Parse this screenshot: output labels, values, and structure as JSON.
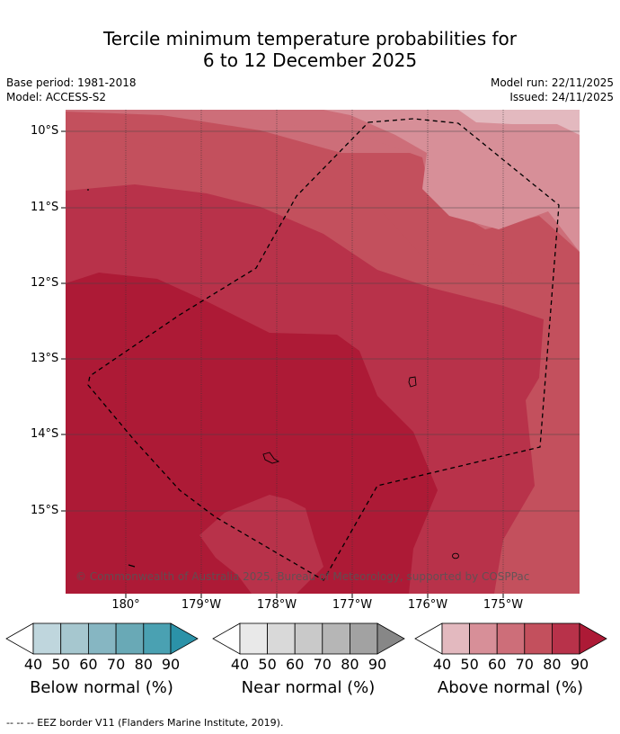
{
  "header": {
    "title_line1": "Tercile minimum temperature probabilities for",
    "title_line2": "6 to 12 December 2025",
    "base_period": "Base period: 1981-2018",
    "model": "Model: ACCESS-S2",
    "model_run": "Model run: 22/11/2025",
    "issued": "Issued: 24/11/2025"
  },
  "map": {
    "lat_labels": [
      "10°S",
      "11°S",
      "12°S",
      "13°S",
      "14°S",
      "15°S"
    ],
    "lon_labels": [
      "180°",
      "179°W",
      "178°W",
      "177°W",
      "176°W",
      "175°W"
    ],
    "copyright": "© Commonwealth of Australia 2025, Bureau of Meteorology, supported by COSPPac",
    "boundary": "EEZ border"
  },
  "legend": {
    "ticks": [
      "40",
      "50",
      "60",
      "70",
      "80",
      "90"
    ],
    "below": {
      "title": "Below normal (%)",
      "colors": [
        "#bfd6dd",
        "#a6c7cf",
        "#86b6c2",
        "#69a9b6",
        "#4aa1b2",
        "#2b92a8"
      ]
    },
    "near": {
      "title": "Near normal (%)",
      "colors": [
        "#e9e9e9",
        "#d9d9d9",
        "#c9c9c9",
        "#b6b6b6",
        "#a2a2a2",
        "#878787"
      ]
    },
    "above": {
      "title": "Above normal (%)",
      "colors": [
        "#e3b9bf",
        "#d78f98",
        "#cd6e79",
        "#c3505d",
        "#b8324a",
        "#ad1a36"
      ]
    }
  },
  "footnote": "--  --  -- EEZ border V11 (Flanders Marine Institute, 2019)."
}
